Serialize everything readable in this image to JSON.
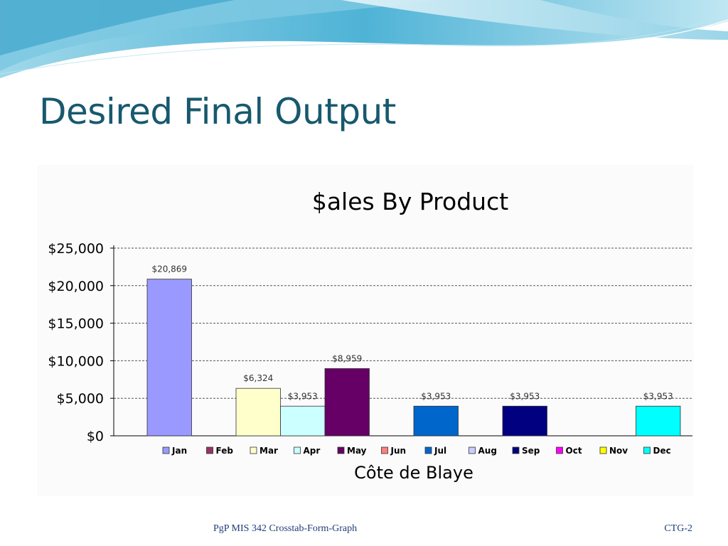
{
  "slide": {
    "title": "Desired Final Output",
    "footer_left": "PgP  MIS 342 Crosstab-Form-Graph",
    "footer_right": "CTG-2"
  },
  "colors": {
    "title": "#17596e",
    "wave_light": "#bfe6f2",
    "wave_mid": "#6fc3dd",
    "wave_dark": "#2a93bb"
  },
  "chart_data": {
    "type": "bar",
    "title": "$ales By Product",
    "xlabel": "Côte de Blaye",
    "ylabel": "",
    "ylim": [
      0,
      25000
    ],
    "y_ticks": [
      0,
      5000,
      10000,
      15000,
      20000,
      25000
    ],
    "y_tick_labels": [
      "$0",
      "$5,000",
      "$10,000",
      "$15,000",
      "$20,000",
      "$25,000"
    ],
    "grid": true,
    "legend_position": "bottom",
    "series": [
      {
        "name": "Jan",
        "value": 20869,
        "label": "$20,869",
        "color": "#9999ff"
      },
      {
        "name": "Feb",
        "value": null,
        "label": "",
        "color": "#993366"
      },
      {
        "name": "Mar",
        "value": 6324,
        "label": "$6,324",
        "color": "#ffffcc"
      },
      {
        "name": "Apr",
        "value": 3953,
        "label": "$3,953",
        "color": "#ccffff"
      },
      {
        "name": "May",
        "value": 8959,
        "label": "$8,959",
        "color": "#660066"
      },
      {
        "name": "Jun",
        "value": null,
        "label": "",
        "color": "#ff8080"
      },
      {
        "name": "Jul",
        "value": 3953,
        "label": "$3,953",
        "color": "#0066cc"
      },
      {
        "name": "Aug",
        "value": null,
        "label": "",
        "color": "#ccccff"
      },
      {
        "name": "Sep",
        "value": 3953,
        "label": "$3,953",
        "color": "#000080"
      },
      {
        "name": "Oct",
        "value": null,
        "label": "",
        "color": "#ff00ff"
      },
      {
        "name": "Nov",
        "value": null,
        "label": "",
        "color": "#ffff00"
      },
      {
        "name": "Dec",
        "value": 3953,
        "label": "$3,953",
        "color": "#00ffff"
      }
    ]
  }
}
